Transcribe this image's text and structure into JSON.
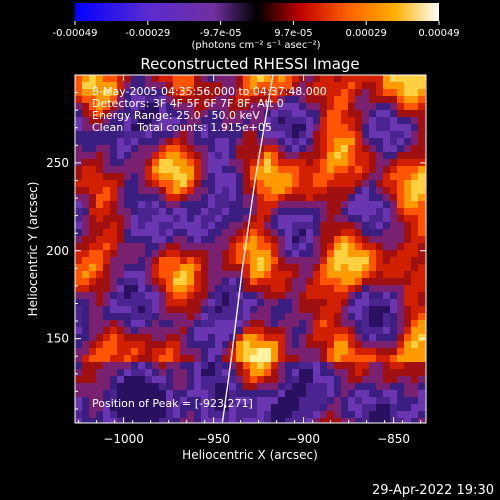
{
  "colorbar": {
    "tick_labels": [
      "-0.00049",
      "-0.00029",
      "-9.7e-05",
      "9.7e-05",
      "0.00029",
      "0.00049"
    ],
    "label": "(photons cm⁻² s⁻¹ asec⁻²)",
    "colors": [
      "#0000ff",
      "#5a2bd0",
      "#7030a0",
      "#000000",
      "#c00000",
      "#ff6000",
      "#ffb000",
      "#ffffff"
    ]
  },
  "chart_data": {
    "type": "heatmap",
    "title": "Reconstructed RHESSI Image",
    "xlabel": "Heliocentric X (arcsec)",
    "ylabel": "Heliocentric Y (arcsec)",
    "xlim": [
      -1027,
      -832
    ],
    "ylim": [
      102,
      300
    ],
    "x_ticks": [
      -1000,
      -950,
      -900,
      -850
    ],
    "x_tick_labels": [
      "−1000",
      "−950",
      "−900",
      "−850"
    ],
    "y_ticks": [
      150,
      200,
      250
    ],
    "y_tick_labels": [
      "150",
      "200",
      "250"
    ],
    "value_range": [
      -0.00049,
      0.00049
    ],
    "limb_curve": [
      {
        "x": -945,
        "y": 103
      },
      {
        "x": -940,
        "y": 140
      },
      {
        "x": -934,
        "y": 190
      },
      {
        "x": -927,
        "y": 240
      },
      {
        "x": -917,
        "y": 300
      }
    ],
    "peak_marker": {
      "x": -923,
      "y": 271
    },
    "annotations": [
      "8-May-2005 04:35:56.000 to 04:37:48.000",
      "Detectors: 3F 4F 5F 6F 7F 8F, Att 0",
      "Energy Range: 25.0 - 50.0 keV",
      "Clean    Total counts: 1.915e+05",
      "Position of Peak = [-923,271]"
    ]
  },
  "footer": {
    "date": "29-Apr-2022 19:30"
  }
}
